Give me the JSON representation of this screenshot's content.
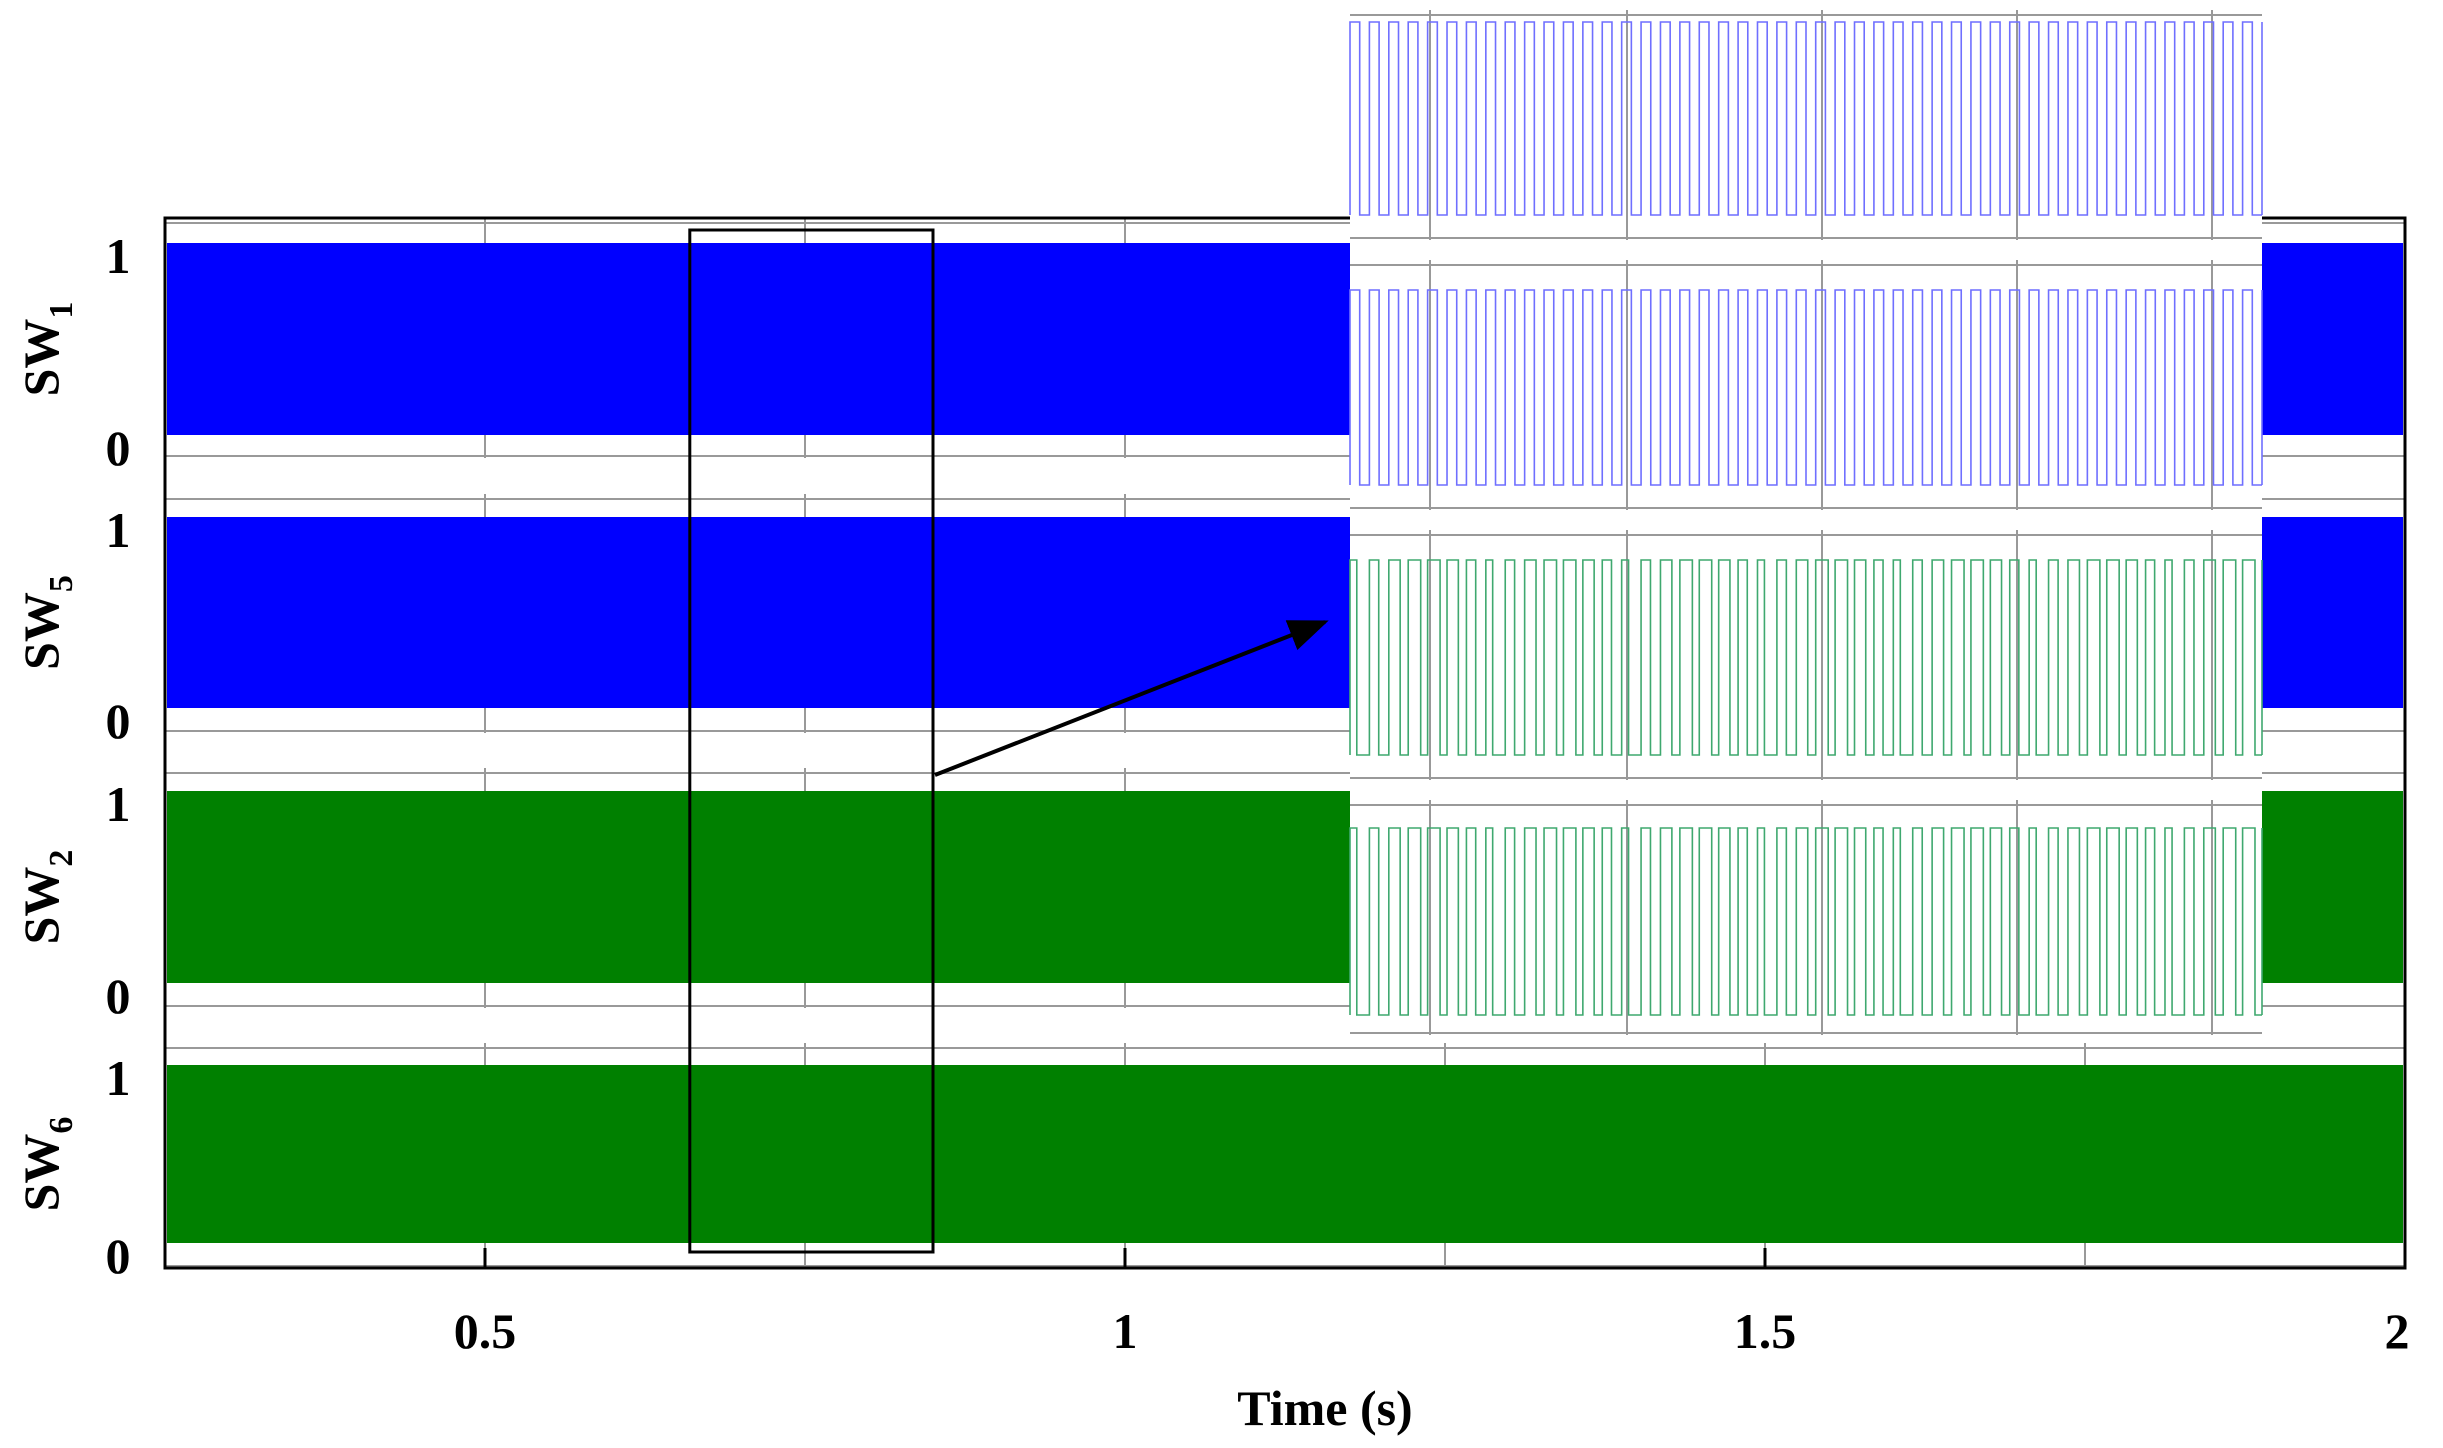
{
  "chart_data": {
    "type": "line",
    "xlabel": "Time (s)",
    "xlim": [
      0.25,
      2
    ],
    "x_ticks": [
      "0.5",
      "1",
      "1.5",
      "2"
    ],
    "ylim": [
      0,
      1
    ],
    "y_ticks": [
      "0",
      "1"
    ],
    "grid": true,
    "series": [
      {
        "name": "SW1",
        "name_main": "SW",
        "name_sub": "1",
        "color": "#0000ff",
        "values": [
          0,
          1
        ]
      },
      {
        "name": "SW5",
        "name_main": "SW",
        "name_sub": "5",
        "color": "#0000ff",
        "values": [
          0,
          1
        ]
      },
      {
        "name": "SW2",
        "name_main": "SW",
        "name_sub": "2",
        "color": "#008000",
        "values": [
          0,
          1
        ]
      },
      {
        "name": "SW6",
        "name_main": "SW",
        "name_sub": "6",
        "color": "#008000",
        "values": [
          0,
          1
        ]
      }
    ],
    "zoom_region": {
      "x_from": 0.66,
      "x_to": 0.85
    },
    "inset": {
      "series": [
        {
          "color": "#6f6fff",
          "pulses": 47
        },
        {
          "color": "#6f6fff",
          "pulses": 47
        },
        {
          "color": "#3fa86f",
          "pulses": 47
        },
        {
          "color": "#3fa86f",
          "pulses": 47
        }
      ]
    }
  }
}
